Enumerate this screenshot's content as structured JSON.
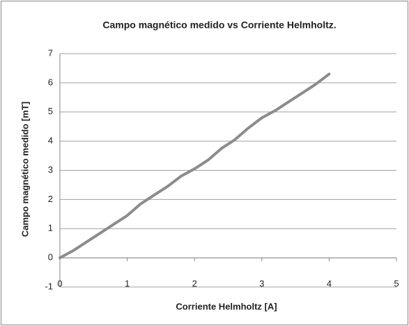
{
  "chart_data": {
    "type": "line",
    "title": "Campo magnético medido vs Corriente Helmholtz.",
    "x_label": "Corriente Helmholtz [A]",
    "y_label": "Campo magnético medido [mT]",
    "x": [
      0,
      0.2,
      0.4,
      0.6,
      0.8,
      1.0,
      1.2,
      1.4,
      1.6,
      1.8,
      2.0,
      2.2,
      2.4,
      2.6,
      2.8,
      3.0,
      3.2,
      3.4,
      3.6,
      3.8,
      4.0
    ],
    "values": [
      0,
      0.25,
      0.55,
      0.85,
      1.15,
      1.45,
      1.85,
      2.15,
      2.45,
      2.8,
      3.05,
      3.35,
      3.75,
      4.05,
      4.45,
      4.8,
      5.05,
      5.35,
      5.65,
      5.95,
      6.3
    ],
    "color": "#8c8c8c",
    "xlim": [
      0,
      5
    ],
    "xticks": [
      0,
      1,
      2,
      3,
      4,
      5
    ],
    "ylim": [
      -1,
      7
    ],
    "yticks": [
      -1,
      0,
      1,
      2,
      3,
      4,
      5,
      6,
      7
    ],
    "grid": true
  }
}
